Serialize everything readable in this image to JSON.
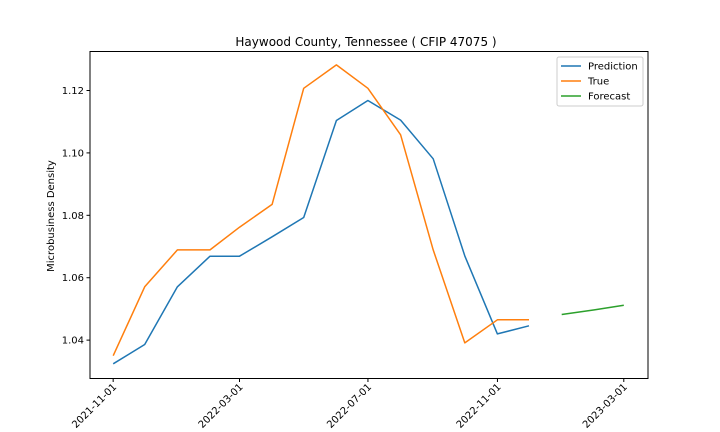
{
  "chart_data": {
    "type": "line",
    "title": "Haywood County, Tennessee ( CFIP 47075 )",
    "xlabel": "",
    "ylabel": "Microbusiness Density",
    "x_ticks": [
      "2021-11-01",
      "2022-03-01",
      "2022-07-01",
      "2022-11-01",
      "2023-03-01"
    ],
    "x_range": [
      "2021-10-10",
      "2023-03-24"
    ],
    "y_ticks": [
      1.04,
      1.06,
      1.08,
      1.1,
      1.12
    ],
    "ylim": [
      1.0277,
      1.1325
    ],
    "grid": false,
    "legend_position": "top-right",
    "series": [
      {
        "name": "Prediction",
        "color": "#1f77b4",
        "x": [
          "2021-11-01",
          "2021-12-01",
          "2022-01-01",
          "2022-02-01",
          "2022-03-01",
          "2022-04-01",
          "2022-05-01",
          "2022-06-01",
          "2022-07-01",
          "2022-08-01",
          "2022-09-01",
          "2022-10-01",
          "2022-11-01",
          "2022-12-01"
        ],
        "values": [
          1.0324,
          1.0386,
          1.0571,
          1.0669,
          1.0669,
          1.0731,
          1.0793,
          1.1104,
          1.1168,
          1.1105,
          1.0981,
          1.067,
          1.042,
          1.0446
        ]
      },
      {
        "name": "True",
        "color": "#ff7f0e",
        "x": [
          "2021-11-01",
          "2021-12-01",
          "2022-01-01",
          "2022-02-01",
          "2022-03-01",
          "2022-04-01",
          "2022-05-01",
          "2022-06-01",
          "2022-07-01",
          "2022-08-01",
          "2022-09-01",
          "2022-10-01",
          "2022-11-01",
          "2022-12-01"
        ],
        "values": [
          1.035,
          1.0571,
          1.0689,
          1.0689,
          1.0762,
          1.0835,
          1.1207,
          1.1282,
          1.1207,
          1.1058,
          1.0689,
          1.0391,
          1.0465,
          1.0465
        ]
      },
      {
        "name": "Forecast",
        "color": "#2ca02c",
        "x": [
          "2023-01-01",
          "2023-02-01",
          "2023-03-01"
        ],
        "values": [
          1.0482,
          1.0497,
          1.0512
        ]
      }
    ]
  }
}
